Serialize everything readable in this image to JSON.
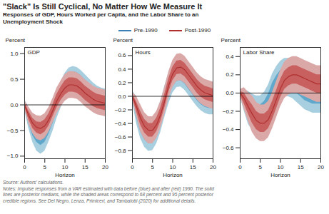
{
  "chart_data": {
    "type": "line",
    "title": "\"Slack\" Is Still Cyclical, No Matter How We Measure It",
    "subtitle": [
      "Responses of GDP, Hours Worked per Capita, and the Labor Share to an",
      "Unemployment Shock"
    ],
    "source": "Source: Authors’ calculations.",
    "notes": [
      "Notes: Impulse responses from a VAR estimated with data before (blue) and after (red) 1990. The solid",
      "lines are posterior medians, while the shaded areas correspond to 68 percent and 95 percent posterior",
      "credible regions. See Del Negro, Lenza, Primiceri, and Tambalotti (2020) for additional details."
    ],
    "x": [
      0,
      1,
      2,
      3,
      4,
      5,
      6,
      7,
      8,
      9,
      10,
      11,
      12,
      13,
      14,
      15,
      16,
      17,
      18,
      19,
      20
    ],
    "panels": [
      {
        "title": "GDP",
        "xlabel": "Horizon",
        "ylabel": "Percent",
        "xlim": [
          0,
          20
        ],
        "xticks": [
          0,
          5,
          10,
          15,
          20
        ],
        "ylim": [
          -1.05,
          1.12
        ],
        "yticks": [
          -1,
          -0.5,
          0,
          0.5,
          1
        ],
        "reference_line": 0,
        "series": [
          {
            "name": "Pre-1990",
            "color": "#3a7fb5",
            "color_68": "#5fa8cc",
            "color_95": "#a8cfe0",
            "values": [
              0.0,
              -0.25,
              -0.45,
              -0.57,
              -0.62,
              -0.57,
              -0.42,
              -0.22,
              0.0,
              0.2,
              0.38,
              0.48,
              0.52,
              0.5,
              0.44,
              0.36,
              0.28,
              0.2,
              0.14,
              0.1,
              0.08
            ],
            "lower_68": [
              -0.05,
              -0.35,
              -0.6,
              -0.73,
              -0.79,
              -0.73,
              -0.57,
              -0.36,
              -0.13,
              0.07,
              0.25,
              0.35,
              0.39,
              0.37,
              0.31,
              0.23,
              0.15,
              0.07,
              0.01,
              -0.03,
              -0.05
            ],
            "upper_68": [
              0.05,
              -0.15,
              -0.3,
              -0.41,
              -0.45,
              -0.41,
              -0.27,
              -0.08,
              0.13,
              0.33,
              0.51,
              0.61,
              0.65,
              0.63,
              0.57,
              0.49,
              0.41,
              0.33,
              0.27,
              0.23,
              0.21
            ],
            "lower_95": [
              -0.1,
              -0.46,
              -0.73,
              -0.9,
              -0.96,
              -0.9,
              -0.72,
              -0.51,
              -0.26,
              -0.06,
              0.14,
              0.24,
              0.29,
              0.27,
              0.21,
              0.13,
              0.05,
              -0.03,
              -0.09,
              -0.13,
              -0.15
            ],
            "upper_95": [
              0.1,
              -0.04,
              -0.17,
              -0.24,
              -0.28,
              -0.23,
              -0.12,
              0.07,
              0.26,
              0.46,
              0.62,
              0.72,
              0.75,
              0.73,
              0.67,
              0.59,
              0.51,
              0.43,
              0.37,
              0.33,
              0.31
            ]
          },
          {
            "name": "Post-1990",
            "color": "#b03030",
            "color_68": "#c86060",
            "color_95": "#dba8a8",
            "values": [
              0.0,
              -0.2,
              -0.36,
              -0.44,
              -0.46,
              -0.41,
              -0.29,
              -0.11,
              0.08,
              0.22,
              0.33,
              0.39,
              0.39,
              0.37,
              0.31,
              0.23,
              0.17,
              0.11,
              0.07,
              0.05,
              0.03
            ],
            "lower_68": [
              -0.04,
              -0.28,
              -0.46,
              -0.55,
              -0.58,
              -0.53,
              -0.41,
              -0.23,
              -0.05,
              0.09,
              0.19,
              0.25,
              0.25,
              0.23,
              0.17,
              0.09,
              0.03,
              -0.03,
              -0.07,
              -0.09,
              -0.11
            ],
            "upper_68": [
              0.04,
              -0.12,
              -0.26,
              -0.33,
              -0.34,
              -0.29,
              -0.17,
              0.01,
              0.21,
              0.35,
              0.47,
              0.53,
              0.53,
              0.51,
              0.45,
              0.37,
              0.31,
              0.25,
              0.21,
              0.19,
              0.17
            ],
            "lower_95": [
              -0.08,
              -0.36,
              -0.56,
              -0.67,
              -0.7,
              -0.65,
              -0.53,
              -0.35,
              -0.17,
              -0.03,
              0.07,
              0.13,
              0.13,
              0.11,
              0.05,
              -0.03,
              -0.09,
              -0.15,
              -0.19,
              -0.21,
              -0.23
            ],
            "upper_95": [
              0.08,
              -0.04,
              -0.16,
              -0.21,
              -0.22,
              -0.17,
              -0.05,
              0.13,
              0.33,
              0.47,
              0.59,
              0.65,
              0.65,
              0.63,
              0.57,
              0.49,
              0.43,
              0.37,
              0.33,
              0.31,
              0.29
            ]
          }
        ]
      },
      {
        "title": "Hours",
        "xlabel": "Horizon",
        "ylabel": "Percent",
        "xlim": [
          0,
          20
        ],
        "xticks": [
          0,
          5,
          10,
          15,
          20
        ],
        "ylim": [
          -0.92,
          0.72
        ],
        "yticks": [
          -0.8,
          -0.6,
          -0.4,
          -0.2,
          0,
          0.2,
          0.4,
          0.6
        ],
        "reference_line": 0,
        "series": [
          {
            "name": "Pre-1990",
            "color": "#3a7fb5",
            "color_68": "#5fa8cc",
            "color_95": "#a8cfe0",
            "values": [
              0.0,
              -0.2,
              -0.4,
              -0.52,
              -0.58,
              -0.57,
              -0.47,
              -0.3,
              -0.08,
              0.12,
              0.27,
              0.35,
              0.36,
              0.31,
              0.23,
              0.15,
              0.07,
              0.01,
              -0.03,
              -0.05,
              -0.05
            ],
            "lower_68": [
              -0.04,
              -0.3,
              -0.52,
              -0.64,
              -0.7,
              -0.69,
              -0.59,
              -0.42,
              -0.2,
              0.0,
              0.14,
              0.22,
              0.23,
              0.18,
              0.1,
              0.02,
              -0.06,
              -0.12,
              -0.16,
              -0.18,
              -0.18
            ],
            "upper_68": [
              0.04,
              -0.1,
              -0.28,
              -0.4,
              -0.46,
              -0.45,
              -0.35,
              -0.18,
              0.04,
              0.24,
              0.4,
              0.48,
              0.49,
              0.44,
              0.36,
              0.28,
              0.2,
              0.14,
              0.1,
              0.08,
              0.08
            ],
            "lower_95": [
              -0.08,
              -0.4,
              -0.62,
              -0.75,
              -0.81,
              -0.8,
              -0.7,
              -0.53,
              -0.31,
              -0.11,
              0.05,
              0.13,
              0.14,
              0.09,
              0.01,
              -0.07,
              -0.15,
              -0.21,
              -0.25,
              -0.27,
              -0.27
            ],
            "upper_95": [
              0.08,
              0.0,
              -0.18,
              -0.29,
              -0.35,
              -0.34,
              -0.24,
              -0.07,
              0.15,
              0.35,
              0.51,
              0.59,
              0.6,
              0.55,
              0.47,
              0.39,
              0.31,
              0.25,
              0.21,
              0.19,
              0.19
            ]
          },
          {
            "name": "Post-1990",
            "color": "#b03030",
            "color_68": "#c86060",
            "color_95": "#dba8a8",
            "values": [
              0.0,
              -0.15,
              -0.32,
              -0.44,
              -0.5,
              -0.5,
              -0.42,
              -0.27,
              -0.07,
              0.16,
              0.33,
              0.42,
              0.43,
              0.39,
              0.31,
              0.23,
              0.15,
              0.09,
              0.05,
              0.03,
              0.01
            ],
            "lower_68": [
              -0.03,
              -0.22,
              -0.42,
              -0.54,
              -0.6,
              -0.6,
              -0.52,
              -0.37,
              -0.17,
              0.06,
              0.23,
              0.32,
              0.33,
              0.29,
              0.21,
              0.13,
              0.05,
              -0.01,
              -0.05,
              -0.07,
              -0.09
            ],
            "upper_68": [
              0.03,
              -0.08,
              -0.22,
              -0.34,
              -0.4,
              -0.4,
              -0.32,
              -0.17,
              0.03,
              0.26,
              0.43,
              0.52,
              0.53,
              0.49,
              0.41,
              0.33,
              0.25,
              0.19,
              0.15,
              0.13,
              0.11
            ],
            "lower_95": [
              -0.06,
              -0.29,
              -0.52,
              -0.64,
              -0.7,
              -0.7,
              -0.62,
              -0.47,
              -0.27,
              -0.04,
              0.13,
              0.22,
              0.23,
              0.19,
              0.11,
              0.03,
              -0.05,
              -0.11,
              -0.15,
              -0.17,
              -0.19
            ],
            "upper_95": [
              0.06,
              0.0,
              -0.12,
              -0.24,
              -0.3,
              -0.3,
              -0.22,
              -0.07,
              0.13,
              0.36,
              0.53,
              0.62,
              0.63,
              0.59,
              0.51,
              0.43,
              0.35,
              0.29,
              0.25,
              0.23,
              0.21
            ]
          }
        ]
      },
      {
        "title": "Labor Share",
        "xlabel": "Horizon",
        "ylabel": "Percent",
        "xlim": [
          0,
          20
        ],
        "xticks": [
          0,
          5,
          10,
          15,
          20
        ],
        "ylim": [
          -0.72,
          0.5
        ],
        "yticks": [
          -0.6,
          -0.4,
          -0.2,
          0,
          0.2,
          0.4
        ],
        "reference_line": 0,
        "series": [
          {
            "name": "Pre-1990",
            "color": "#3a7fb5",
            "color_68": "#5fa8cc",
            "color_95": "#a8cfe0",
            "values": [
              0.0,
              -0.08,
              -0.16,
              -0.21,
              -0.23,
              -0.23,
              -0.19,
              -0.11,
              0.0,
              0.08,
              0.14,
              0.17,
              0.17,
              0.15,
              0.11,
              0.07,
              0.03,
              0.01,
              -0.01,
              -0.01,
              -0.01
            ],
            "lower_68": [
              -0.02,
              -0.14,
              -0.25,
              -0.31,
              -0.33,
              -0.33,
              -0.29,
              -0.21,
              -0.11,
              -0.03,
              0.03,
              0.06,
              0.06,
              0.04,
              0.0,
              -0.04,
              -0.08,
              -0.1,
              -0.12,
              -0.12,
              -0.12
            ],
            "upper_68": [
              0.02,
              -0.02,
              -0.07,
              -0.11,
              -0.13,
              -0.13,
              -0.09,
              -0.01,
              0.11,
              0.19,
              0.25,
              0.28,
              0.28,
              0.26,
              0.22,
              0.18,
              0.14,
              0.12,
              0.1,
              0.1,
              0.1
            ],
            "lower_95": [
              -0.04,
              -0.2,
              -0.34,
              -0.41,
              -0.43,
              -0.43,
              -0.39,
              -0.31,
              -0.21,
              -0.13,
              -0.07,
              -0.04,
              -0.04,
              -0.06,
              -0.1,
              -0.14,
              -0.18,
              -0.2,
              -0.22,
              -0.22,
              -0.22
            ],
            "upper_95": [
              0.04,
              0.04,
              0.02,
              -0.01,
              -0.03,
              -0.03,
              0.01,
              0.09,
              0.21,
              0.29,
              0.35,
              0.38,
              0.38,
              0.36,
              0.32,
              0.28,
              0.24,
              0.22,
              0.2,
              0.2,
              0.2
            ]
          },
          {
            "name": "Post-1990",
            "color": "#b03030",
            "color_68": "#c86060",
            "color_95": "#dba8a8",
            "values": [
              0.0,
              -0.06,
              -0.15,
              -0.23,
              -0.3,
              -0.33,
              -0.33,
              -0.29,
              -0.19,
              -0.07,
              0.05,
              0.14,
              0.18,
              0.2,
              0.2,
              0.18,
              0.16,
              0.14,
              0.12,
              0.1,
              0.1
            ],
            "lower_68": [
              -0.02,
              -0.12,
              -0.23,
              -0.33,
              -0.4,
              -0.43,
              -0.43,
              -0.39,
              -0.29,
              -0.17,
              -0.05,
              0.04,
              0.08,
              0.1,
              0.1,
              0.08,
              0.06,
              0.04,
              0.02,
              0.0,
              0.0
            ],
            "upper_68": [
              0.02,
              0.0,
              -0.07,
              -0.13,
              -0.2,
              -0.23,
              -0.23,
              -0.19,
              -0.09,
              0.03,
              0.15,
              0.24,
              0.28,
              0.3,
              0.3,
              0.28,
              0.26,
              0.24,
              0.22,
              0.2,
              0.2
            ],
            "lower_95": [
              -0.04,
              -0.18,
              -0.31,
              -0.43,
              -0.5,
              -0.53,
              -0.53,
              -0.49,
              -0.39,
              -0.27,
              -0.15,
              -0.06,
              -0.02,
              0.0,
              0.0,
              -0.02,
              -0.04,
              -0.06,
              -0.08,
              -0.1,
              -0.1
            ],
            "upper_95": [
              0.04,
              0.06,
              0.01,
              -0.03,
              -0.1,
              -0.13,
              -0.13,
              -0.09,
              0.01,
              0.13,
              0.25,
              0.34,
              0.38,
              0.4,
              0.4,
              0.38,
              0.36,
              0.34,
              0.32,
              0.3,
              0.3
            ]
          }
        ]
      }
    ]
  }
}
